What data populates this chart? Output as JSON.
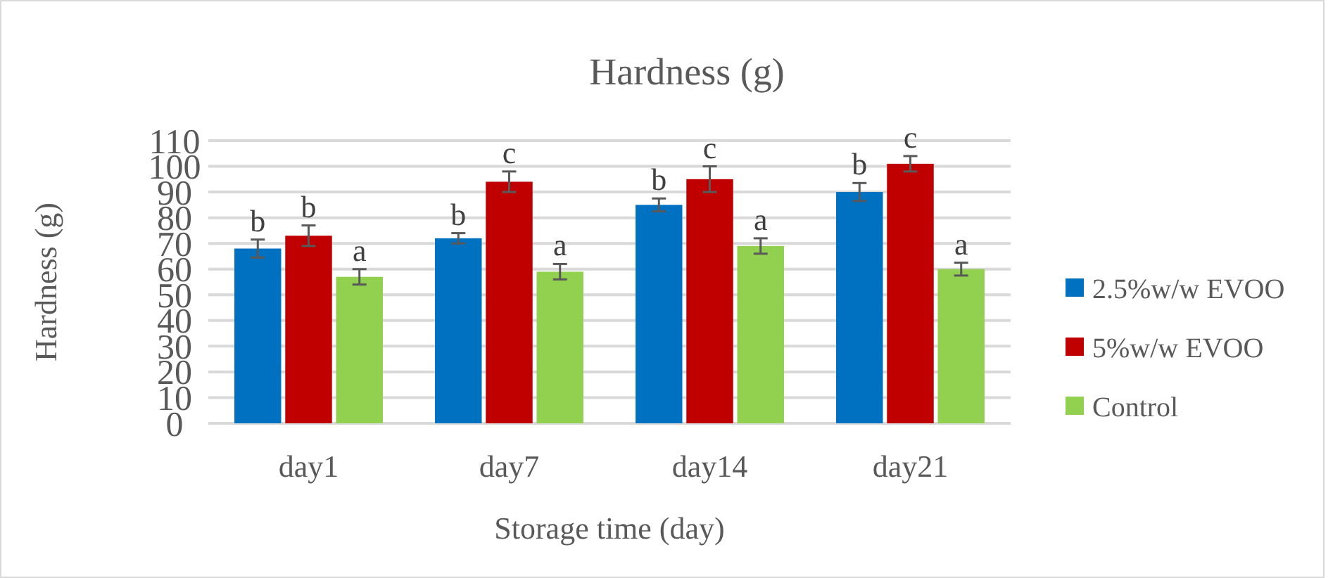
{
  "chart_data": {
    "type": "bar",
    "title": "Hardness (g)",
    "xlabel": "Storage time (day)",
    "ylabel": "Hardness (g)",
    "categories": [
      "day1",
      "day7",
      "day14",
      "day21"
    ],
    "series": [
      {
        "name": "2.5%w/w EVOO",
        "color": "#0070c0",
        "values": [
          68,
          72,
          85,
          90
        ],
        "errors": [
          3.5,
          2,
          2.5,
          3.5
        ],
        "value_labels": [
          "b",
          "b",
          "b",
          "b"
        ]
      },
      {
        "name": "5%w/w EVOO",
        "color": "#c00000",
        "values": [
          73,
          94,
          95,
          101
        ],
        "errors": [
          4,
          4,
          5,
          3
        ],
        "value_labels": [
          "b",
          "c",
          "c",
          "c"
        ]
      },
      {
        "name": "Control",
        "color": "#92d050",
        "values": [
          57,
          59,
          69,
          60
        ],
        "errors": [
          3,
          3,
          3,
          2.5
        ],
        "value_labels": [
          "a",
          "a",
          "a",
          "a"
        ]
      }
    ],
    "ylim": [
      0,
      110
    ],
    "yticks": [
      0,
      10,
      20,
      30,
      40,
      50,
      60,
      70,
      80,
      90,
      100,
      110
    ],
    "grid": "y",
    "legend": "right"
  }
}
